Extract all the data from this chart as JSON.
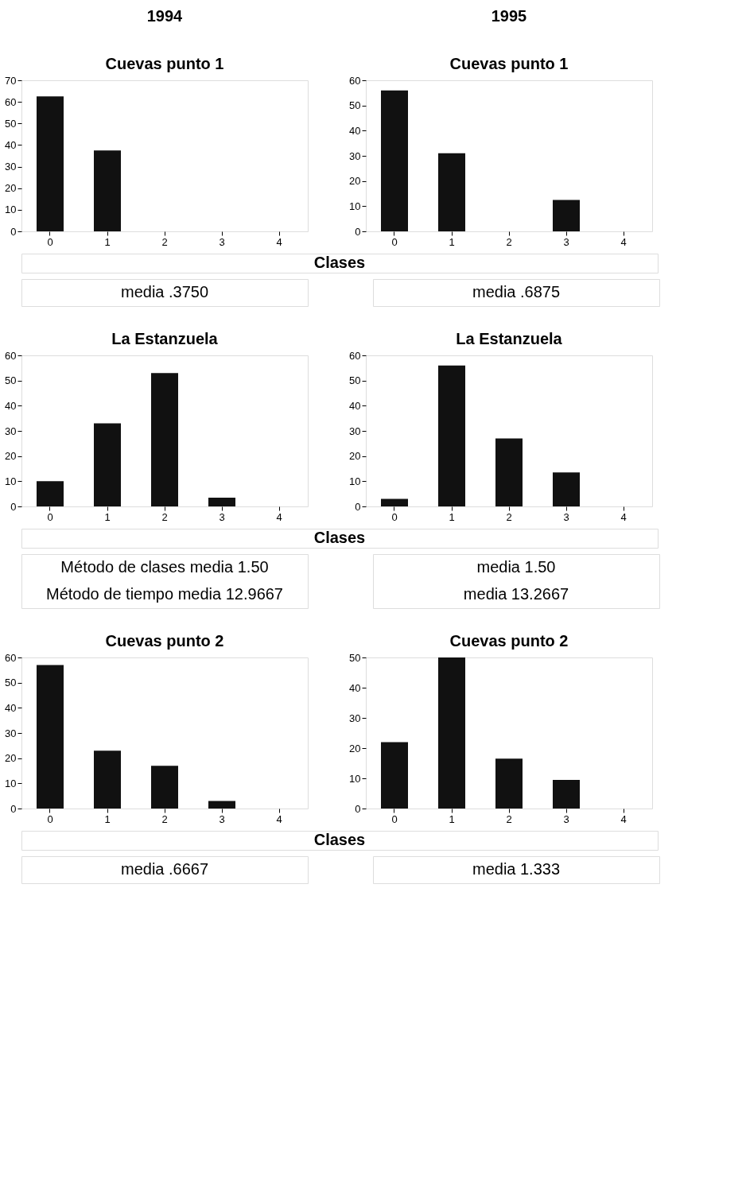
{
  "chart_data": [
    {
      "type": "bar",
      "title": "1994",
      "subtitle": "Cuevas punto 1",
      "xlabel": "Clases",
      "categories": [
        "0",
        "1",
        "2",
        "3",
        "4"
      ],
      "values": [
        62.5,
        37.5,
        0,
        0,
        0
      ],
      "color": "#111111",
      "ylim": [
        0,
        70
      ],
      "yticks": [
        0,
        10,
        20,
        30,
        40,
        50,
        60,
        70
      ],
      "grid": false,
      "annotations": [
        "media .3750"
      ]
    },
    {
      "type": "bar",
      "title": "1995",
      "subtitle": "Cuevas punto 1",
      "categories": [
        "0",
        "1",
        "2",
        "3",
        "4"
      ],
      "values": [
        56,
        31,
        0,
        12.5,
        0
      ],
      "color": "#111111",
      "ylim": [
        0,
        60
      ],
      "yticks": [
        0,
        10,
        20,
        30,
        40,
        50,
        60
      ],
      "grid": false,
      "annotations": [
        "media .6875"
      ]
    },
    {
      "type": "bar",
      "title": "La Estanzuela",
      "xlabel": "Clases",
      "categories": [
        "0",
        "1",
        "2",
        "3",
        "4"
      ],
      "values": [
        10,
        33,
        53,
        3.5,
        0
      ],
      "color": "#111111",
      "ylim": [
        0,
        60
      ],
      "yticks": [
        0,
        10,
        20,
        30,
        40,
        50,
        60
      ],
      "grid": false,
      "annotations": [
        "Método de clases media 1.50",
        "Método de tiempo media 12.9667"
      ]
    },
    {
      "type": "bar",
      "title": "La Estanzuela",
      "categories": [
        "0",
        "1",
        "2",
        "3",
        "4"
      ],
      "values": [
        3,
        56,
        27,
        13.5,
        0
      ],
      "color": "#111111",
      "ylim": [
        0,
        60
      ],
      "yticks": [
        0,
        10,
        20,
        30,
        40,
        50,
        60
      ],
      "grid": false,
      "annotations": [
        "media 1.50",
        "media 13.2667"
      ]
    },
    {
      "type": "bar",
      "title": "Cuevas punto 2",
      "xlabel": "Clases",
      "categories": [
        "0",
        "1",
        "2",
        "3",
        "4"
      ],
      "values": [
        57,
        23,
        17,
        3,
        0
      ],
      "color": "#111111",
      "ylim": [
        0,
        60
      ],
      "yticks": [
        0,
        10,
        20,
        30,
        40,
        50,
        60
      ],
      "grid": false,
      "annotations": [
        "media .6667"
      ]
    },
    {
      "type": "bar",
      "title": "Cuevas punto 2",
      "categories": [
        "0",
        "1",
        "2",
        "3",
        "4"
      ],
      "values": [
        22,
        50,
        16.5,
        9.5,
        0
      ],
      "color": "#111111",
      "ylim": [
        0,
        50
      ],
      "yticks": [
        0,
        10,
        20,
        30,
        40,
        50
      ],
      "grid": false,
      "annotations": [
        "media 1.333"
      ]
    }
  ]
}
